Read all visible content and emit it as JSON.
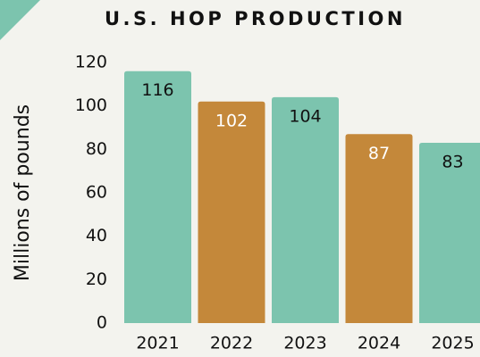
{
  "chart_data": {
    "type": "bar",
    "title": "U.S. HOP PRODUCTION",
    "y_label": "Millions of pounds",
    "categories": [
      "2021",
      "2022",
      "2023",
      "2024",
      "2025"
    ],
    "values": [
      116,
      102,
      104,
      87,
      83
    ],
    "colors": [
      "#7cc4ae",
      "#c4883a",
      "#7cc4ae",
      "#c4883a",
      "#7cc4ae"
    ],
    "label_colors": [
      "#111111",
      "#ffffff",
      "#111111",
      "#ffffff",
      "#111111"
    ],
    "ylim": [
      0,
      120
    ],
    "yticks": [
      0,
      20,
      40,
      60,
      80,
      100,
      120
    ],
    "grid": false
  }
}
